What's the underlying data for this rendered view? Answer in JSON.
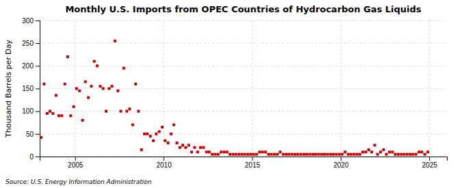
{
  "chart_data": {
    "type": "scatter",
    "title": "Monthly U.S. Imports from OPEC Countries of Hydrocarbon Gas Liquids",
    "ylabel": "Thousand Barrels per Day",
    "annotations": [
      "Source: U.S. Energy Information Administration"
    ],
    "color": "#cc0000",
    "marker": "square",
    "grid": true,
    "xlim": [
      2003.0,
      2026.0
    ],
    "ylim": [
      0,
      300
    ],
    "xticks": [
      2005,
      2010,
      2015,
      2020,
      2025
    ],
    "yticks": [
      0,
      50,
      100,
      150,
      200,
      250,
      300
    ],
    "x": [
      2003.08,
      2003.25,
      2003.42,
      2003.58,
      2003.75,
      2003.92,
      2004.08,
      2004.25,
      2004.42,
      2004.58,
      2004.75,
      2004.92,
      2005.08,
      2005.25,
      2005.42,
      2005.58,
      2005.75,
      2005.92,
      2006.08,
      2006.25,
      2006.42,
      2006.58,
      2006.75,
      2006.92,
      2007.08,
      2007.25,
      2007.42,
      2007.58,
      2007.75,
      2007.92,
      2008.08,
      2008.25,
      2008.42,
      2008.58,
      2008.75,
      2008.92,
      2009.08,
      2009.25,
      2009.42,
      2009.58,
      2009.75,
      2009.92,
      2010.08,
      2010.25,
      2010.42,
      2010.58,
      2010.75,
      2010.92,
      2011.08,
      2011.25,
      2011.42,
      2011.58,
      2011.75,
      2011.92,
      2012.08,
      2012.25,
      2012.42,
      2012.58,
      2012.75,
      2012.92,
      2013.08,
      2013.25,
      2013.42,
      2013.58,
      2013.75,
      2013.92,
      2014.08,
      2014.25,
      2014.42,
      2014.58,
      2014.75,
      2014.92,
      2015.08,
      2015.25,
      2015.42,
      2015.58,
      2015.75,
      2015.92,
      2016.08,
      2016.25,
      2016.42,
      2016.58,
      2016.75,
      2016.92,
      2017.08,
      2017.25,
      2017.42,
      2017.58,
      2017.75,
      2017.92,
      2018.08,
      2018.25,
      2018.42,
      2018.58,
      2018.75,
      2018.92,
      2019.08,
      2019.25,
      2019.42,
      2019.58,
      2019.75,
      2019.92,
      2020.08,
      2020.25,
      2020.42,
      2020.58,
      2020.75,
      2020.92,
      2021.08,
      2021.25,
      2021.42,
      2021.58,
      2021.75,
      2021.92,
      2022.08,
      2022.25,
      2022.42,
      2022.58,
      2022.75,
      2022.92,
      2023.08,
      2023.25,
      2023.42,
      2023.58,
      2023.75,
      2023.92,
      2024.08,
      2024.25,
      2024.42,
      2024.58,
      2024.75,
      2024.92
    ],
    "values": [
      42,
      160,
      95,
      100,
      95,
      135,
      90,
      90,
      160,
      220,
      90,
      110,
      150,
      145,
      80,
      165,
      130,
      155,
      210,
      200,
      155,
      150,
      100,
      150,
      155,
      255,
      145,
      100,
      195,
      100,
      105,
      70,
      160,
      100,
      15,
      50,
      50,
      45,
      35,
      50,
      55,
      65,
      35,
      30,
      50,
      70,
      30,
      20,
      25,
      20,
      25,
      10,
      20,
      10,
      20,
      20,
      10,
      10,
      5,
      5,
      5,
      10,
      10,
      10,
      5,
      5,
      5,
      5,
      5,
      5,
      5,
      5,
      5,
      5,
      10,
      10,
      10,
      5,
      5,
      5,
      5,
      10,
      5,
      5,
      5,
      5,
      5,
      5,
      5,
      5,
      5,
      5,
      5,
      5,
      5,
      5,
      5,
      5,
      5,
      5,
      5,
      5,
      5,
      10,
      5,
      5,
      5,
      5,
      5,
      10,
      10,
      15,
      10,
      25,
      5,
      10,
      15,
      5,
      10,
      10,
      5,
      5,
      5,
      5,
      5,
      5,
      5,
      5,
      10,
      10,
      5,
      10
    ]
  }
}
